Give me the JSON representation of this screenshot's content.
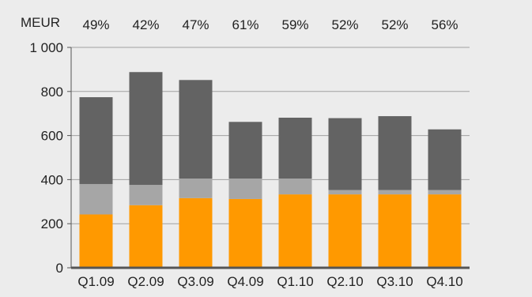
{
  "chart_data": {
    "type": "bar",
    "stacked": true,
    "unit_label": "MEUR",
    "categories": [
      "Q1.09",
      "Q2.09",
      "Q3.09",
      "Q4.09",
      "Q1.10",
      "Q2.10",
      "Q3.10",
      "Q4.10"
    ],
    "top_labels": [
      "49%",
      "42%",
      "47%",
      "61%",
      "59%",
      "52%",
      "52%",
      "56%"
    ],
    "series": [
      {
        "color": "#ff9900",
        "values": [
          242,
          284,
          316,
          312,
          333,
          333,
          333,
          333
        ]
      },
      {
        "color": "#a6a6a6",
        "values": [
          138,
          92,
          89,
          93,
          72,
          20,
          20,
          20
        ]
      },
      {
        "color": "#636363",
        "values": [
          394,
          512,
          447,
          257,
          276,
          326,
          335,
          275
        ]
      }
    ],
    "ylim": [
      0,
      1000
    ],
    "yticks": [
      0,
      200,
      400,
      600,
      800,
      1000
    ],
    "ytick_labels": [
      "0",
      "200",
      "400",
      "600",
      "800",
      "1 000"
    ],
    "grid": true,
    "colors": {
      "background": "#ececec",
      "gridline": "#a0a0a0",
      "axis": "#555555",
      "text": "#222222"
    }
  }
}
